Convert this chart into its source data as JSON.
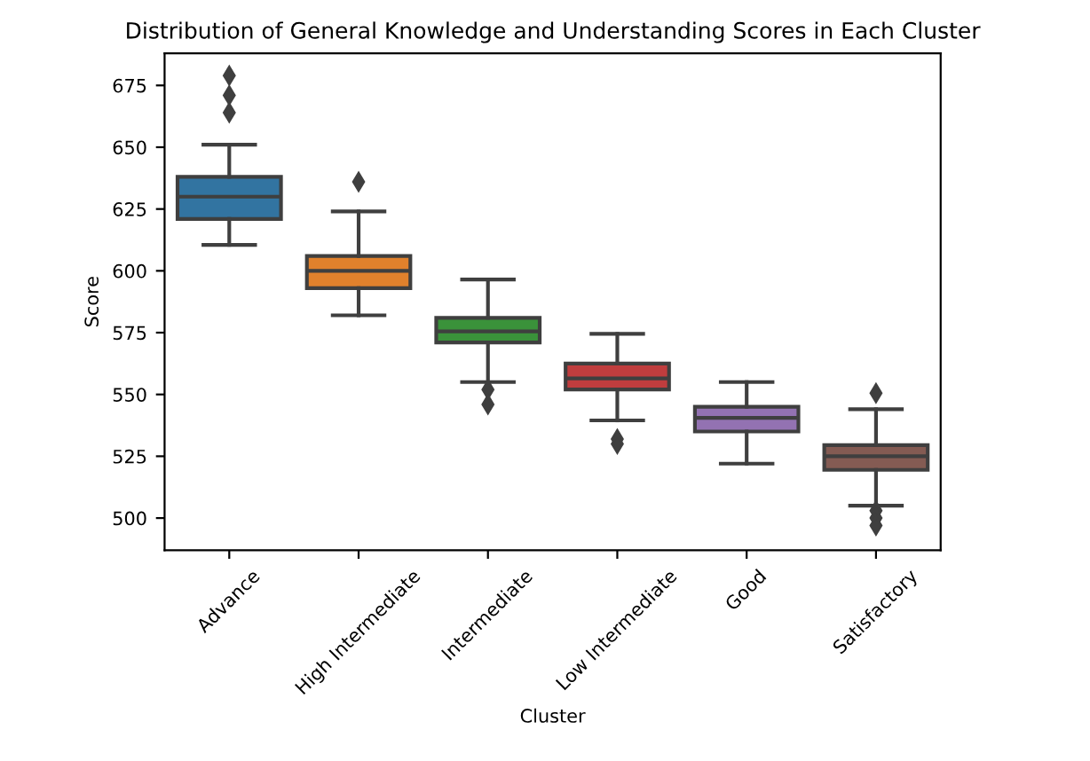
{
  "chart_data": {
    "type": "box",
    "title": "Distribution of General Knowledge and Understanding Scores in Each Cluster",
    "xlabel": "Cluster",
    "ylabel": "Score",
    "categories": [
      "Advance",
      "High Intermediate",
      "Intermediate",
      "Low Intermediate",
      "Good",
      "Satisfactory"
    ],
    "colors": [
      "#3274a1",
      "#e1812c",
      "#3a923a",
      "#c03d3e",
      "#9372b2",
      "#845b53"
    ],
    "boxes": [
      {
        "low": 610.5,
        "q1": 621,
        "median": 630,
        "q3": 638,
        "high": 651,
        "outliers": [
          664,
          671,
          679
        ]
      },
      {
        "low": 582,
        "q1": 593,
        "median": 600,
        "q3": 606,
        "high": 624,
        "outliers": [
          636
        ]
      },
      {
        "low": 555,
        "q1": 571,
        "median": 575.5,
        "q3": 581,
        "high": 596.5,
        "outliers": [
          552,
          546
        ]
      },
      {
        "low": 539.5,
        "q1": 552,
        "median": 556.5,
        "q3": 562.5,
        "high": 574.5,
        "outliers": [
          532,
          530
        ]
      },
      {
        "low": 522,
        "q1": 535,
        "median": 540.5,
        "q3": 545,
        "high": 555
      },
      {
        "low": 505,
        "q1": 519.5,
        "median": 525,
        "q3": 529.5,
        "high": 544,
        "outliers": [
          550.5,
          503,
          500,
          497
        ]
      }
    ],
    "ylim": [
      487,
      688
    ],
    "yticks": [
      500,
      525,
      550,
      575,
      600,
      625,
      650,
      675
    ],
    "grid": false
  }
}
